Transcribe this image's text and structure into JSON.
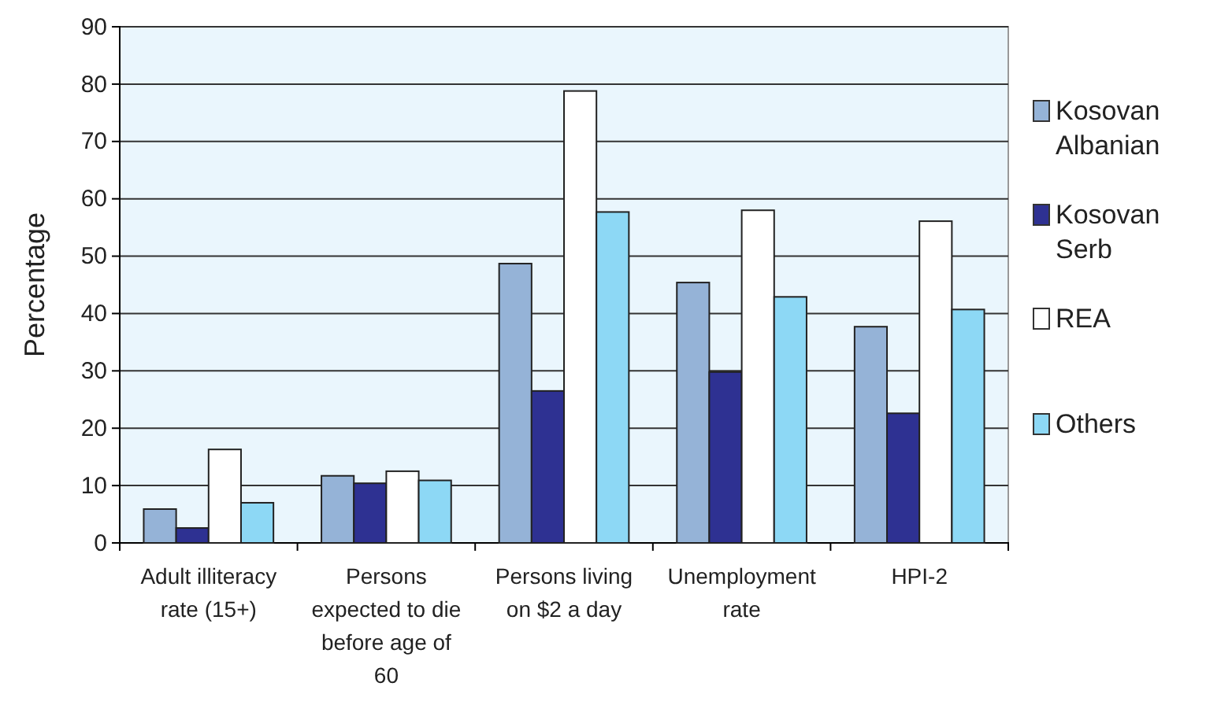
{
  "chart_data": {
    "type": "bar",
    "ylabel": "Percentage",
    "categories": [
      "Adult illiteracy rate (15+)",
      "Persons expected to die before age of 60",
      "Persons living on $2 a day",
      "Unemployment rate",
      "HPI-2"
    ],
    "series": [
      {
        "name": "Kosovan Albanian",
        "color": "#95b3d7",
        "values": [
          5.9,
          11.7,
          48.7,
          45.4,
          37.7
        ]
      },
      {
        "name": "Kosovan Serb",
        "color": "#2e3192",
        "values": [
          2.6,
          10.4,
          26.5,
          29.8,
          22.6
        ]
      },
      {
        "name": "REA",
        "color": "#ffffff",
        "values": [
          16.3,
          12.5,
          78.8,
          58.0,
          56.1
        ]
      },
      {
        "name": "Others",
        "color": "#8dd8f5",
        "values": [
          7.0,
          10.9,
          57.7,
          42.9,
          40.7
        ]
      }
    ],
    "ylim": [
      0,
      90
    ],
    "yticks": [
      0,
      10,
      20,
      30,
      40,
      50,
      60,
      70,
      80,
      90
    ],
    "grid": "y",
    "legend": "right"
  }
}
